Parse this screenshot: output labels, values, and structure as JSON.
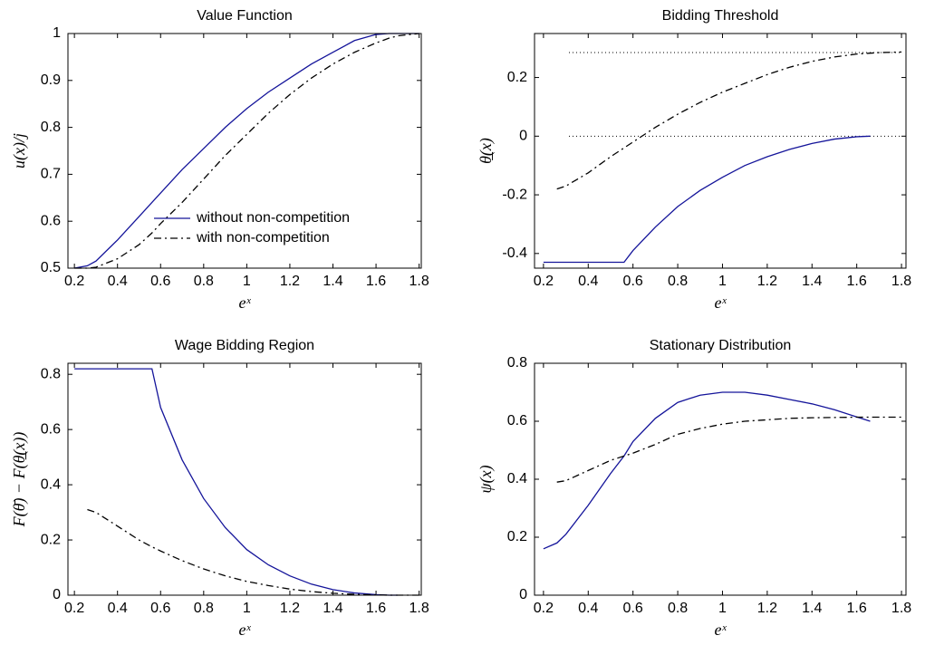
{
  "chart_data": [
    {
      "type": "line",
      "title": "Value Function",
      "xlabel": "eˣ",
      "ylabel": "u(x)/j",
      "x": [
        0.2,
        0.26,
        0.3,
        0.4,
        0.5,
        0.56,
        0.6,
        0.7,
        0.8,
        0.9,
        1.0,
        1.1,
        1.2,
        1.3,
        1.4,
        1.5,
        1.6,
        1.66,
        1.7,
        1.8
      ],
      "xlim": [
        0.17,
        1.81
      ],
      "xticks": [
        0.2,
        0.4,
        0.6,
        0.8,
        1,
        1.2,
        1.4,
        1.6,
        1.8
      ],
      "ylim": [
        0.5,
        1
      ],
      "yticks": [
        0.5,
        0.6,
        0.7,
        0.8,
        0.9,
        1
      ],
      "legend": "center",
      "series": [
        {
          "name": "without non-competition",
          "color": "#14149a",
          "linestyle": "solid",
          "values": [
            0.5,
            0.505,
            0.515,
            0.56,
            0.61,
            0.64,
            0.66,
            0.71,
            0.755,
            0.8,
            0.84,
            0.875,
            0.905,
            0.935,
            0.96,
            0.985,
            0.998,
            1,
            1,
            1
          ]
        },
        {
          "name": "with non-competition",
          "color": "#000000",
          "linestyle": "dashdot",
          "values": [
            0.5,
            0.5,
            0.502,
            0.52,
            0.55,
            0.575,
            0.595,
            0.64,
            0.69,
            0.74,
            0.785,
            0.83,
            0.87,
            0.905,
            0.935,
            0.96,
            0.98,
            0.99,
            0.995,
            1
          ]
        }
      ]
    },
    {
      "type": "line",
      "title": "Bidding Threshold",
      "xlabel": "eˣ",
      "ylabel": "θ̲(x)",
      "x": [
        0.2,
        0.26,
        0.3,
        0.4,
        0.5,
        0.56,
        0.6,
        0.7,
        0.8,
        0.9,
        1.0,
        1.1,
        1.2,
        1.3,
        1.4,
        1.5,
        1.6,
        1.66,
        1.7,
        1.8
      ],
      "xlim": [
        0.16,
        1.82
      ],
      "xticks": [
        0.2,
        0.4,
        0.6,
        0.8,
        1,
        1.2,
        1.4,
        1.6,
        1.8
      ],
      "ylim": [
        -0.45,
        0.35
      ],
      "yticks": [
        -0.4,
        -0.2,
        0,
        0.2
      ],
      "hlines": [
        0.285,
        0
      ],
      "series": [
        {
          "color": "#14149a",
          "linestyle": "solid",
          "values": [
            -0.43,
            -0.43,
            -0.43,
            -0.43,
            -0.43,
            -0.43,
            -0.39,
            -0.31,
            -0.24,
            -0.185,
            -0.14,
            -0.1,
            -0.07,
            -0.045,
            -0.025,
            -0.01,
            -0.002,
            0,
            null,
            null
          ]
        },
        {
          "color": "#000000",
          "linestyle": "dashdot",
          "values": [
            null,
            -0.18,
            -0.17,
            -0.125,
            -0.07,
            -0.04,
            -0.02,
            0.03,
            0.075,
            0.115,
            0.15,
            0.18,
            0.21,
            0.235,
            0.255,
            0.27,
            0.28,
            0.283,
            0.285,
            0.287
          ]
        }
      ]
    },
    {
      "type": "line",
      "title": "Wage Bidding Region",
      "xlabel": "eˣ",
      "ylabel": "F(θ̄) − F(θ̲(x))",
      "x": [
        0.2,
        0.26,
        0.3,
        0.4,
        0.5,
        0.56,
        0.6,
        0.7,
        0.8,
        0.9,
        1.0,
        1.1,
        1.2,
        1.3,
        1.4,
        1.5,
        1.6,
        1.66,
        1.7,
        1.8
      ],
      "xlim": [
        0.17,
        1.81
      ],
      "xticks": [
        0.2,
        0.4,
        0.6,
        0.8,
        1,
        1.2,
        1.4,
        1.6,
        1.8
      ],
      "ylim": [
        0,
        0.84
      ],
      "yticks": [
        0,
        0.2,
        0.4,
        0.6,
        0.8
      ],
      "series": [
        {
          "color": "#14149a",
          "linestyle": "solid",
          "values": [
            0.82,
            0.82,
            0.82,
            0.82,
            0.82,
            0.82,
            0.68,
            0.49,
            0.35,
            0.245,
            0.165,
            0.11,
            0.07,
            0.04,
            0.02,
            0.008,
            0.002,
            0,
            0,
            null
          ]
        },
        {
          "color": "#000000",
          "linestyle": "dashdot",
          "values": [
            null,
            0.31,
            0.3,
            0.25,
            0.2,
            0.175,
            0.16,
            0.125,
            0.095,
            0.07,
            0.05,
            0.035,
            0.022,
            0.013,
            0.007,
            0.003,
            0.001,
            0,
            0,
            0
          ]
        }
      ]
    },
    {
      "type": "line",
      "title": "Stationary Distribution",
      "xlabel": "eˣ",
      "ylabel": "ψ(x)",
      "x": [
        0.2,
        0.26,
        0.3,
        0.4,
        0.5,
        0.56,
        0.6,
        0.7,
        0.8,
        0.9,
        1.0,
        1.1,
        1.2,
        1.3,
        1.4,
        1.5,
        1.6,
        1.66,
        1.7,
        1.8
      ],
      "xlim": [
        0.16,
        1.82
      ],
      "xticks": [
        0.2,
        0.4,
        0.6,
        0.8,
        1,
        1.2,
        1.4,
        1.6,
        1.8
      ],
      "ylim": [
        0,
        0.8
      ],
      "yticks": [
        0,
        0.2,
        0.4,
        0.6,
        0.8
      ],
      "series": [
        {
          "color": "#14149a",
          "linestyle": "solid",
          "values": [
            0.16,
            0.18,
            0.21,
            0.31,
            0.42,
            0.48,
            0.53,
            0.61,
            0.665,
            0.69,
            0.7,
            0.7,
            0.69,
            0.675,
            0.66,
            0.64,
            0.615,
            0.6,
            null,
            null
          ]
        },
        {
          "color": "#000000",
          "linestyle": "dashdot",
          "values": [
            null,
            0.39,
            0.395,
            0.43,
            0.465,
            0.48,
            0.49,
            0.52,
            0.555,
            0.575,
            0.59,
            0.6,
            0.605,
            0.61,
            0.612,
            0.613,
            0.614,
            0.614,
            0.614,
            0.614
          ]
        }
      ]
    }
  ]
}
